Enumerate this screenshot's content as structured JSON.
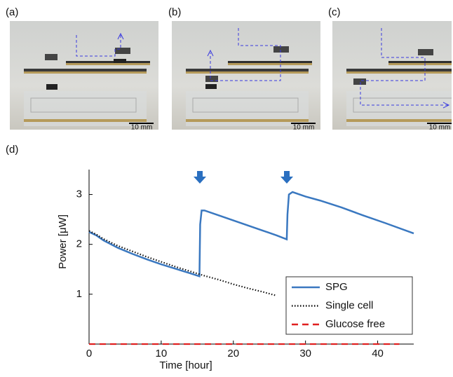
{
  "labels": [
    "(a)",
    "(b)",
    "(c)",
    "(d)"
  ],
  "scale_bars": [
    "10 mm",
    "10 mm",
    "10 mm"
  ],
  "chart_data": {
    "type": "line",
    "xlabel": "Time [hour]",
    "ylabel": "Power [μW]",
    "xlim": [
      0,
      45
    ],
    "ylim": [
      0,
      3.5
    ],
    "xticks": [
      0,
      10,
      20,
      30,
      40
    ],
    "yticks": [
      1,
      2,
      3
    ],
    "legend": "lower right",
    "series": [
      {
        "name": "SPG",
        "color": "#3a78c0",
        "style": "solid",
        "x": [
          0,
          1,
          2,
          4,
          6,
          8,
          10,
          12,
          14,
          15.3,
          15.4,
          15.6,
          16,
          18,
          20,
          22,
          24,
          26,
          27.4,
          27.5,
          27.7,
          28.2,
          30,
          32,
          35,
          38,
          41,
          45
        ],
        "values": [
          2.25,
          2.18,
          2.08,
          1.93,
          1.81,
          1.7,
          1.6,
          1.51,
          1.42,
          1.36,
          2.4,
          2.68,
          2.68,
          2.58,
          2.48,
          2.38,
          2.28,
          2.18,
          2.1,
          2.6,
          3.0,
          3.05,
          2.96,
          2.88,
          2.74,
          2.58,
          2.43,
          2.22
        ]
      },
      {
        "name": "Single cell",
        "color": "#111111",
        "style": "dotted",
        "x": [
          0,
          1,
          2,
          4,
          6,
          8,
          10,
          12,
          14,
          16,
          18,
          20,
          22,
          24,
          26
        ],
        "values": [
          2.27,
          2.2,
          2.11,
          1.97,
          1.86,
          1.75,
          1.65,
          1.55,
          1.46,
          1.37,
          1.29,
          1.2,
          1.12,
          1.05,
          0.97
        ]
      },
      {
        "name": "Glucose free",
        "color": "#e02020",
        "style": "dashed",
        "x": [
          0,
          43
        ],
        "values": [
          0,
          0
        ]
      }
    ]
  }
}
